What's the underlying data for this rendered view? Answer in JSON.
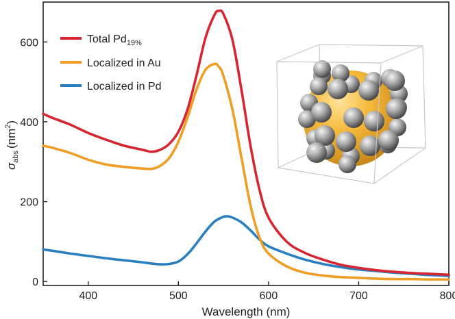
{
  "chart_data": {
    "type": "line",
    "xlabel": "Wavelength  (nm)",
    "ylabel": {
      "symbol": "σ",
      "subscript": "abs",
      "unit_prefix": "(nm",
      "unit_sup": "2",
      "unit_suffix": ")"
    },
    "xlim": [
      350,
      800
    ],
    "ylim": [
      -10,
      700
    ],
    "xticks": [
      400,
      500,
      600,
      700,
      800
    ],
    "yticks": [
      0,
      200,
      400,
      600
    ],
    "grid": false,
    "legend_position": "top-left",
    "series": [
      {
        "name": "Total Pd",
        "name_sub": "19%",
        "color": "#d62631",
        "x": [
          350,
          360,
          380,
          400,
          420,
          440,
          460,
          470,
          480,
          490,
          500,
          510,
          520,
          530,
          540,
          545,
          550,
          560,
          570,
          580,
          590,
          600,
          620,
          640,
          660,
          680,
          700,
          720,
          740,
          760,
          780,
          800
        ],
        "y": [
          420,
          410,
          393,
          372,
          355,
          340,
          330,
          325,
          330,
          345,
          375,
          430,
          515,
          610,
          668,
          678,
          670,
          605,
          480,
          340,
          230,
          160,
          100,
          72,
          55,
          42,
          34,
          28,
          24,
          21,
          19,
          17
        ]
      },
      {
        "name": "Localized in Au",
        "color": "#ef9d24",
        "x": [
          350,
          360,
          380,
          400,
          420,
          440,
          460,
          470,
          480,
          490,
          500,
          510,
          520,
          530,
          540,
          545,
          550,
          560,
          570,
          580,
          590,
          600,
          620,
          640,
          660,
          680,
          700,
          720,
          740,
          760,
          780,
          800
        ],
        "y": [
          340,
          335,
          322,
          305,
          293,
          287,
          283,
          282,
          290,
          310,
          350,
          410,
          480,
          530,
          545,
          538,
          515,
          430,
          310,
          190,
          110,
          70,
          38,
          22,
          15,
          11,
          9,
          7,
          6,
          6,
          5,
          5
        ]
      },
      {
        "name": "Localized in Pd",
        "color": "#2a7fc1",
        "x": [
          350,
          360,
          380,
          400,
          420,
          440,
          460,
          470,
          480,
          490,
          500,
          510,
          520,
          530,
          540,
          550,
          555,
          560,
          570,
          580,
          590,
          600,
          620,
          640,
          660,
          680,
          700,
          720,
          740,
          760,
          780,
          800
        ],
        "y": [
          80,
          77,
          70,
          64,
          58,
          53,
          48,
          45,
          43,
          44,
          50,
          68,
          95,
          125,
          150,
          162,
          163,
          160,
          148,
          128,
          105,
          88,
          70,
          55,
          44,
          36,
          30,
          26,
          22,
          19,
          16,
          14
        ]
      }
    ]
  },
  "inset": {
    "icon": "nanoparticle-icon"
  }
}
